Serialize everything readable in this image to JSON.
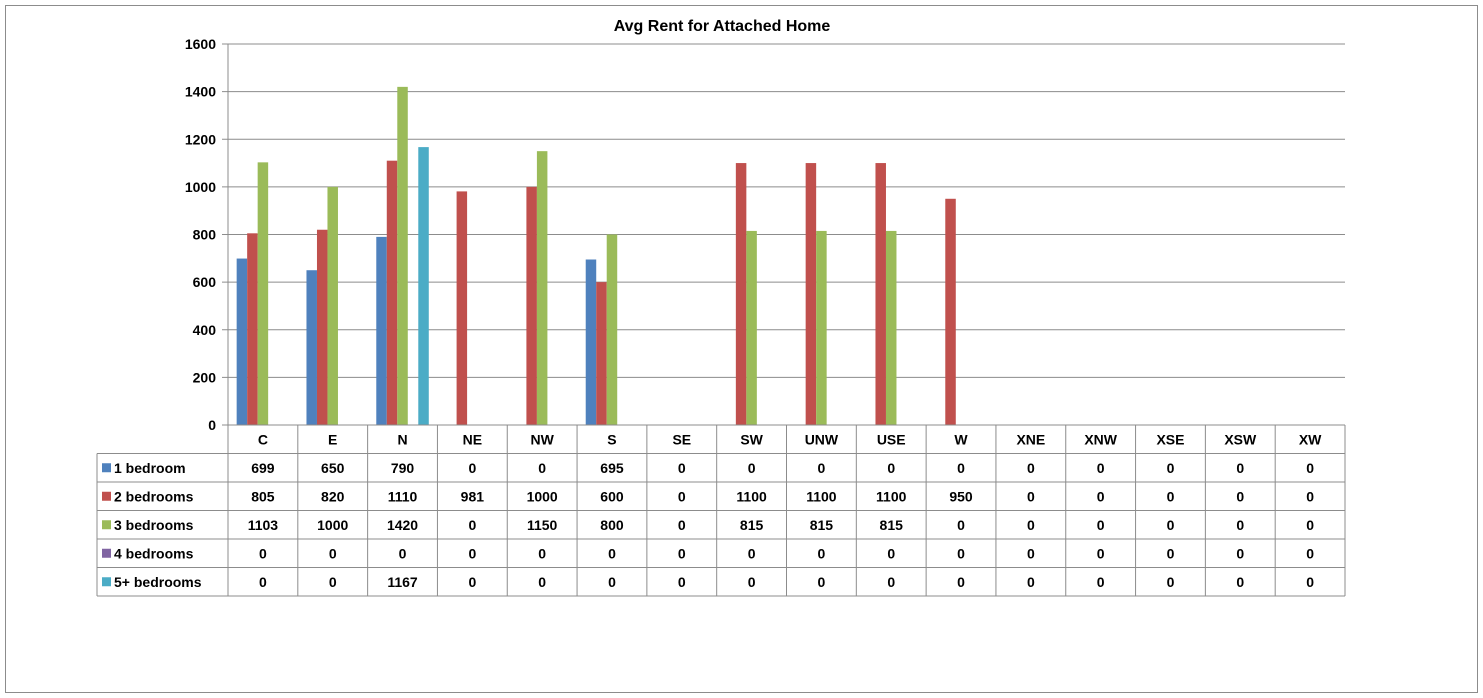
{
  "chart_data": {
    "type": "bar",
    "title": "Avg Rent for Attached Home",
    "xlabel": "",
    "ylabel": "",
    "ylim": [
      0,
      1600
    ],
    "yticks": [
      0,
      200,
      400,
      600,
      800,
      1000,
      1200,
      1400,
      1600
    ],
    "grid": true,
    "legend": "data-table",
    "categories": [
      "C",
      "E",
      "N",
      "NE",
      "NW",
      "S",
      "SE",
      "SW",
      "UNW",
      "USE",
      "W",
      "XNE",
      "XNW",
      "XSE",
      "XSW",
      "XW"
    ],
    "series": [
      {
        "name": "1 bedroom",
        "color": "#4f81bd",
        "values": [
          699,
          650,
          790,
          0,
          0,
          695,
          0,
          0,
          0,
          0,
          0,
          0,
          0,
          0,
          0,
          0
        ]
      },
      {
        "name": "2 bedrooms",
        "color": "#c0504d",
        "values": [
          805,
          820,
          1110,
          981,
          1000,
          600,
          0,
          1100,
          1100,
          1100,
          950,
          0,
          0,
          0,
          0,
          0
        ]
      },
      {
        "name": "3 bedrooms",
        "color": "#9bbb59",
        "values": [
          1103,
          1000,
          1420,
          0,
          1150,
          800,
          0,
          815,
          815,
          815,
          0,
          0,
          0,
          0,
          0,
          0
        ]
      },
      {
        "name": "4 bedrooms",
        "color": "#8064a2",
        "values": [
          0,
          0,
          0,
          0,
          0,
          0,
          0,
          0,
          0,
          0,
          0,
          0,
          0,
          0,
          0,
          0
        ]
      },
      {
        "name": "5+ bedrooms",
        "color": "#4bacc6",
        "values": [
          0,
          0,
          1167,
          0,
          0,
          0,
          0,
          0,
          0,
          0,
          0,
          0,
          0,
          0,
          0,
          0
        ]
      }
    ]
  }
}
